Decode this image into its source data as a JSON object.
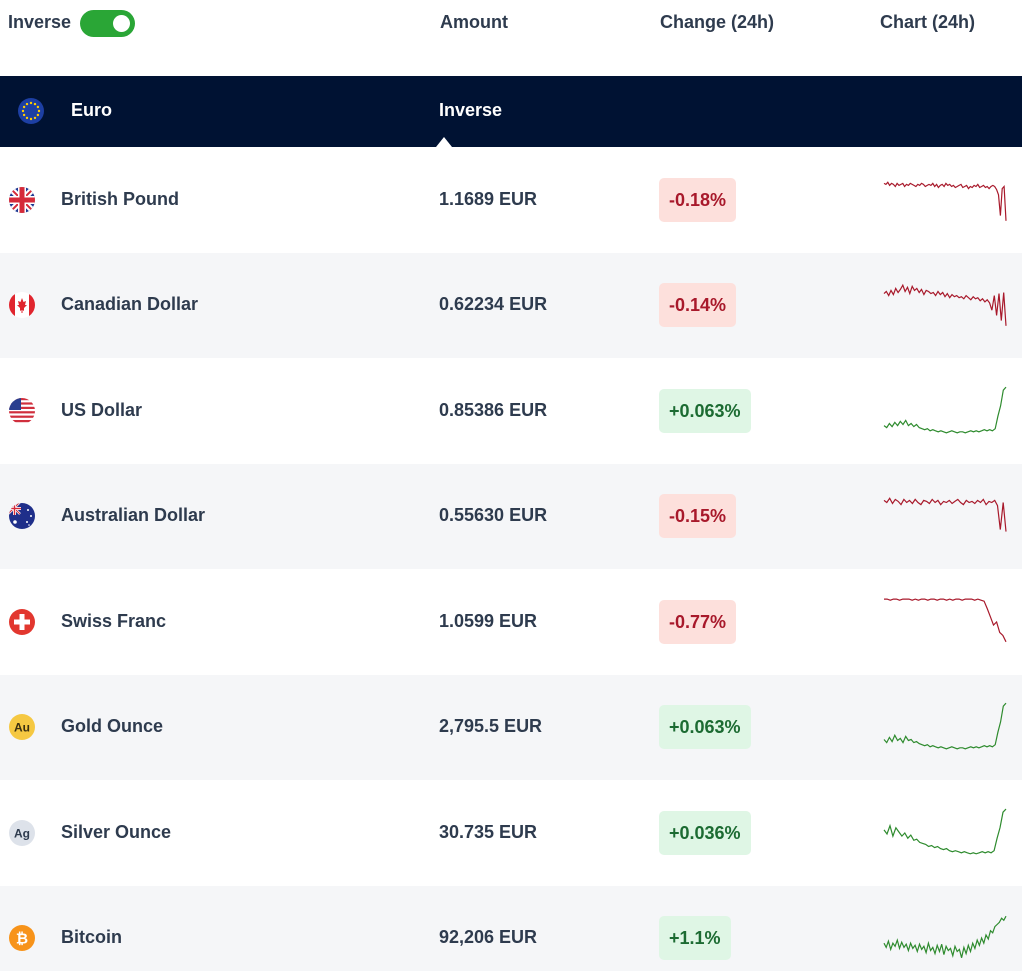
{
  "header": {
    "inverse_label": "Inverse",
    "toggle_on": true,
    "col_amount": "Amount",
    "col_change": "Change (24h)",
    "col_chart": "Chart (24h)"
  },
  "base": {
    "name": "Euro",
    "mode_label": "Inverse",
    "flag_icon": "eu-flag-icon"
  },
  "colors": {
    "accent_green": "#2aa636",
    "navy": "#001233",
    "negative_text": "#a8192b",
    "negative_bg": "#fde0dc",
    "positive_text": "#1c6b32",
    "positive_bg": "#dff6e5",
    "spark_negative": "#a8192b",
    "spark_positive": "#2e8b2e"
  },
  "rows": [
    {
      "name": "British Pound",
      "amount": "1.1689 EUR",
      "change": "-0.18%",
      "trend": "neg",
      "flag_icon": "uk-flag-icon",
      "spark": [
        9,
        10,
        8,
        11,
        9,
        10,
        12,
        9,
        11,
        10,
        9,
        12,
        10,
        11,
        9,
        10,
        11,
        12,
        10,
        11,
        9,
        10,
        12,
        11,
        10,
        11,
        9,
        12,
        10,
        13,
        11,
        10,
        12,
        9,
        11,
        10,
        12,
        11,
        13,
        12,
        11,
        10,
        13,
        12,
        11,
        14,
        12,
        13,
        11,
        12,
        10,
        13,
        12,
        11,
        13,
        12,
        14,
        12,
        11,
        12,
        15,
        20,
        40,
        14,
        12,
        45
      ]
    },
    {
      "name": "Canadian Dollar",
      "amount": "0.62234 EUR",
      "change": "-0.14%",
      "trend": "neg",
      "flag_icon": "canada-flag-icon",
      "spark": [
        14,
        12,
        16,
        11,
        15,
        9,
        13,
        10,
        6,
        12,
        8,
        14,
        7,
        11,
        9,
        13,
        10,
        15,
        11,
        12,
        14,
        13,
        16,
        12,
        15,
        13,
        17,
        14,
        18,
        15,
        17,
        16,
        18,
        17,
        19,
        16,
        18,
        20,
        17,
        19,
        18,
        21,
        19,
        22,
        20,
        23,
        30,
        16,
        35,
        14,
        40,
        13,
        45
      ]
    },
    {
      "name": "US Dollar",
      "amount": "0.85386 EUR",
      "change": "+0.063%",
      "trend": "pos",
      "flag_icon": "us-flag-icon",
      "spark": [
        39,
        41,
        37,
        40,
        36,
        39,
        35,
        38,
        34,
        39,
        37,
        40,
        38,
        41,
        42,
        43,
        42,
        44,
        43,
        44,
        45,
        44,
        45,
        46,
        45,
        44,
        45,
        46,
        45,
        45,
        46,
        45,
        44,
        45,
        44,
        45,
        44,
        43,
        44,
        43,
        44,
        42,
        30,
        20,
        5,
        2
      ]
    },
    {
      "name": "Australian Dollar",
      "amount": "0.55630 EUR",
      "change": "-0.15%",
      "trend": "neg",
      "flag_icon": "australia-flag-icon",
      "spark": [
        10,
        12,
        8,
        13,
        9,
        11,
        14,
        9,
        12,
        10,
        13,
        9,
        12,
        14,
        10,
        11,
        13,
        9,
        12,
        10,
        14,
        11,
        12,
        10,
        13,
        11,
        9,
        12,
        14,
        10,
        12,
        11,
        13,
        10,
        12,
        9,
        14,
        11,
        12,
        10,
        15,
        38,
        12,
        40
      ]
    },
    {
      "name": "Swiss Franc",
      "amount": "1.0599 EUR",
      "change": "-0.77%",
      "trend": "neg",
      "flag_icon": "swiss-flag-icon",
      "spark": [
        3,
        3,
        4,
        3,
        3,
        4,
        3,
        3,
        3,
        4,
        3,
        4,
        3,
        3,
        4,
        3,
        3,
        4,
        3,
        3,
        4,
        3,
        4,
        3,
        3,
        4,
        3,
        3,
        3,
        4,
        3,
        4,
        5,
        12,
        20,
        28,
        25,
        35,
        38,
        44
      ]
    },
    {
      "name": "Gold Ounce",
      "amount": "2,795.5 EUR",
      "change": "+0.063%",
      "trend": "pos",
      "flag_icon": "gold-au-icon",
      "spark": [
        37,
        40,
        35,
        39,
        33,
        38,
        36,
        40,
        34,
        38,
        37,
        40,
        39,
        41,
        42,
        43,
        42,
        44,
        43,
        44,
        45,
        44,
        45,
        46,
        45,
        44,
        45,
        46,
        45,
        45,
        46,
        45,
        44,
        45,
        44,
        45,
        44,
        43,
        44,
        43,
        44,
        42,
        30,
        20,
        5,
        2
      ]
    },
    {
      "name": "Silver Ounce",
      "amount": "30.735 EUR",
      "change": "+0.036%",
      "trend": "pos",
      "flag_icon": "silver-ag-icon",
      "spark": [
        22,
        26,
        18,
        28,
        20,
        24,
        28,
        25,
        30,
        27,
        32,
        31,
        34,
        35,
        36,
        38,
        37,
        39,
        38,
        40,
        41,
        40,
        42,
        43,
        42,
        43,
        44,
        43,
        44,
        45,
        44,
        45,
        44,
        43,
        44,
        43,
        44,
        42,
        30,
        20,
        5,
        2
      ]
    },
    {
      "name": "Bitcoin",
      "amount": "92,206 EUR",
      "change": "+1.1%",
      "trend": "pos",
      "flag_icon": "bitcoin-icon",
      "spark": [
        30,
        34,
        28,
        36,
        30,
        33,
        27,
        35,
        29,
        34,
        31,
        37,
        30,
        35,
        32,
        38,
        31,
        36,
        33,
        39,
        30,
        37,
        34,
        40,
        32,
        38,
        31,
        41,
        33,
        37,
        35,
        42,
        33,
        38,
        36,
        44,
        34,
        40,
        32,
        38,
        30,
        35,
        27,
        32,
        25,
        30,
        22,
        26,
        18,
        20,
        14,
        12,
        10,
        6,
        8,
        4
      ]
    }
  ]
}
